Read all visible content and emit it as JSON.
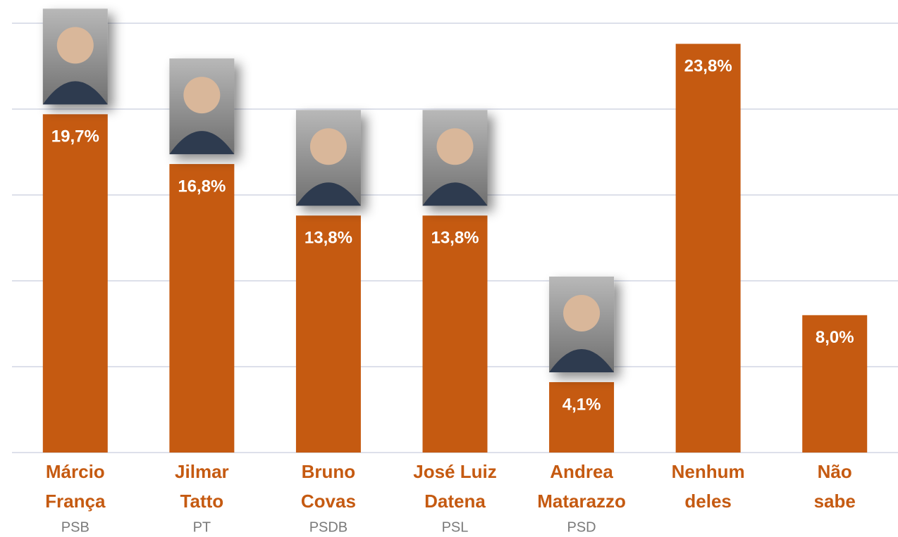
{
  "chart_data": {
    "type": "bar",
    "categories": [
      [
        "Márcio",
        "França"
      ],
      [
        "Jilmar",
        "Tatto"
      ],
      [
        "Bruno",
        "Covas"
      ],
      [
        "José Luiz",
        "Datena"
      ],
      [
        "Andrea",
        "Matarazzo"
      ],
      [
        "Nenhum",
        "deles"
      ],
      [
        "Não",
        "sabe"
      ]
    ],
    "parties": [
      "PSB",
      "PT",
      "PSDB",
      "PSL",
      "PSD",
      null,
      null
    ],
    "values": [
      19.7,
      16.8,
      13.8,
      13.8,
      4.1,
      23.8,
      8.0
    ],
    "value_labels": [
      "19,7%",
      "16,8%",
      "13,8%",
      "13,8%",
      "4,1%",
      "23,8%",
      "8,0%"
    ],
    "color": "#c55a11",
    "ylim": [
      0,
      25
    ],
    "yticks": [
      0,
      5,
      10,
      15,
      20,
      25
    ],
    "grid": true
  }
}
